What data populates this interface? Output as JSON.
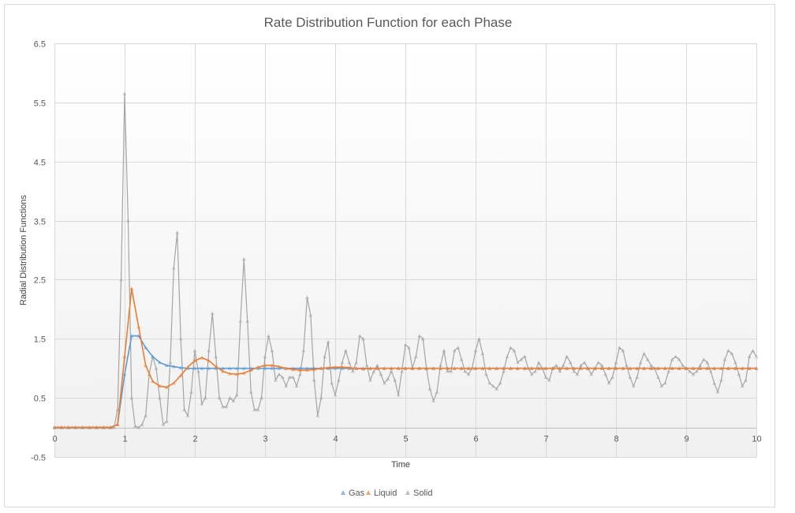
{
  "chart_data": {
    "type": "line",
    "title": "Rate Distribution Function for each Phase",
    "xlabel": "Time",
    "ylabel": "Radial Distribution Functions",
    "xlim": [
      0,
      10
    ],
    "ylim": [
      -0.5,
      6.5
    ],
    "x_ticks": [
      "0",
      "1",
      "2",
      "3",
      "4",
      "5",
      "6",
      "7",
      "8",
      "9",
      "10"
    ],
    "y_ticks": [
      "-0.5",
      "0.5",
      "1.5",
      "2.5",
      "3.5",
      "4.5",
      "5.5",
      "6.5"
    ],
    "grid": true,
    "legend_position": "bottom",
    "series": [
      {
        "name": "Gas",
        "color": "#5b9bd5",
        "x_start": 0,
        "x_step": 0.1,
        "values": [
          0,
          0,
          0,
          0,
          0,
          0,
          0,
          0,
          0,
          0.05,
          0.9,
          1.55,
          1.55,
          1.35,
          1.2,
          1.1,
          1.05,
          1.03,
          1.01,
          1,
          1,
          1,
          1,
          1,
          1,
          1,
          1,
          1,
          1,
          1,
          1,
          1,
          1,
          1,
          1,
          1,
          1,
          1,
          1,
          1,
          1,
          1,
          1,
          1,
          1,
          1,
          1,
          1,
          1,
          1,
          1,
          1,
          1,
          1,
          1,
          1,
          1,
          1,
          1,
          1,
          1,
          1,
          1,
          1,
          1,
          1,
          1,
          1,
          1,
          1,
          1,
          1,
          1,
          1,
          1,
          1,
          1,
          1,
          1,
          1,
          1,
          1,
          1,
          1,
          1,
          1,
          1,
          1,
          1,
          1,
          1,
          1,
          1,
          1,
          1,
          1,
          1,
          1,
          1,
          1,
          1
        ]
      },
      {
        "name": "Liquid",
        "color": "#ed7d31",
        "x_start": 0,
        "x_step": 0.1,
        "values": [
          0,
          0,
          0,
          0,
          0,
          0,
          0,
          0,
          0,
          0.05,
          1.2,
          2.35,
          1.7,
          1.05,
          0.78,
          0.7,
          0.68,
          0.75,
          0.88,
          1.02,
          1.13,
          1.18,
          1.13,
          1.03,
          0.95,
          0.91,
          0.9,
          0.92,
          0.97,
          1.02,
          1.05,
          1.05,
          1.03,
          1.0,
          0.98,
          0.97,
          0.97,
          0.98,
          1.0,
          1.01,
          1.02,
          1.02,
          1.01,
          1.0,
          0.99,
          1,
          1,
          1,
          1,
          1,
          1,
          1,
          1,
          1,
          1,
          1,
          1,
          1,
          1,
          1,
          1,
          1,
          1,
          1,
          1,
          1,
          1,
          1,
          1,
          1,
          1,
          1,
          1,
          1,
          1,
          1,
          1,
          1,
          1,
          1,
          1,
          1,
          1,
          1,
          1,
          1,
          1,
          1,
          1,
          1,
          1,
          1,
          1,
          1,
          1,
          1,
          1,
          1,
          1,
          1,
          1
        ]
      },
      {
        "name": "Solid",
        "color": "#a5a5a5",
        "x_start": 0,
        "x_step": 0.05,
        "values": [
          0,
          0,
          0,
          0,
          0,
          0,
          0,
          0,
          0,
          0,
          0,
          0,
          0,
          0,
          0,
          0,
          0,
          0,
          0.3,
          2.5,
          5.65,
          3.5,
          0.5,
          0.02,
          0,
          0.05,
          0.2,
          0.9,
          1.2,
          1.0,
          0.5,
          0.05,
          0.1,
          1.1,
          2.7,
          3.3,
          1.5,
          0.3,
          0.2,
          0.6,
          1.3,
          0.95,
          0.4,
          0.5,
          1.3,
          1.93,
          1.2,
          0.5,
          0.35,
          0.35,
          0.5,
          0.45,
          0.55,
          1.8,
          2.85,
          1.8,
          0.6,
          0.3,
          0.3,
          0.5,
          1.2,
          1.55,
          1.3,
          0.8,
          0.9,
          0.85,
          0.7,
          0.85,
          0.85,
          0.7,
          0.9,
          1.3,
          2.2,
          1.9,
          0.8,
          0.2,
          0.5,
          1.2,
          1.45,
          0.75,
          0.55,
          0.8,
          1.1,
          1.3,
          1.1,
          0.95,
          1.1,
          1.55,
          1.5,
          1.05,
          0.8,
          0.95,
          1.05,
          0.9,
          0.75,
          0.82,
          0.95,
          0.8,
          0.55,
          0.95,
          1.4,
          1.35,
          1.0,
          1.2,
          1.55,
          1.5,
          1.0,
          0.65,
          0.45,
          0.6,
          1.05,
          1.3,
          0.95,
          0.95,
          1.3,
          1.35,
          1.15,
          0.95,
          0.9,
          1.0,
          1.3,
          1.5,
          1.25,
          0.9,
          0.75,
          0.7,
          0.65,
          0.75,
          0.95,
          1.2,
          1.35,
          1.3,
          1.1,
          1.15,
          1.2,
          1.0,
          0.9,
          0.95,
          1.1,
          1.0,
          0.85,
          0.8,
          1.0,
          1.05,
          0.95,
          1.05,
          1.2,
          1.1,
          0.95,
          0.9,
          1.05,
          1.1,
          1.0,
          0.9,
          1.0,
          1.1,
          1.05,
          0.9,
          0.75,
          0.85,
          1.1,
          1.35,
          1.3,
          1.05,
          0.85,
          0.7,
          0.85,
          1.1,
          1.25,
          1.15,
          1.05,
          1.0,
          0.85,
          0.7,
          0.75,
          0.95,
          1.15,
          1.2,
          1.15,
          1.05,
          1.0,
          0.95,
          0.9,
          0.95,
          1.05,
          1.15,
          1.1,
          0.95,
          0.75,
          0.6,
          0.8,
          1.15,
          1.3,
          1.25,
          1.1,
          0.9,
          0.7,
          0.8,
          1.2,
          1.3,
          1.2
        ]
      }
    ]
  }
}
